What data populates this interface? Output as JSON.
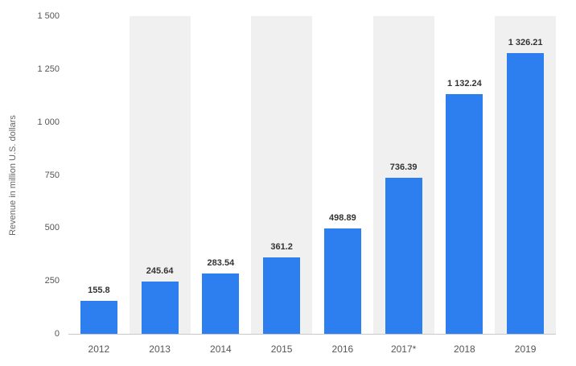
{
  "chart_data": {
    "type": "bar",
    "title": "",
    "categories": [
      "2012",
      "2013",
      "2014",
      "2015",
      "2016",
      "2017*",
      "2018",
      "2019"
    ],
    "values": [
      155.8,
      245.64,
      283.54,
      361.2,
      498.89,
      736.39,
      1132.24,
      1326.21
    ],
    "value_labels": [
      "155.8",
      "245.64",
      "283.54",
      "361.2",
      "498.89",
      "736.39",
      "1 132.24",
      "1 326.21"
    ],
    "xlabel": "",
    "ylabel": "Revenue in million U.S. dollars",
    "ylim": [
      0,
      1500
    ],
    "yticks": [
      0,
      250,
      500,
      750,
      1000,
      1250,
      1500
    ],
    "ytick_labels": [
      "0",
      "250",
      "500",
      "750",
      "1 000",
      "1 250",
      "1 500"
    ],
    "bar_color": "#2d7ff0",
    "band_color": "#f0f0f0",
    "grid": false,
    "legend": false
  }
}
